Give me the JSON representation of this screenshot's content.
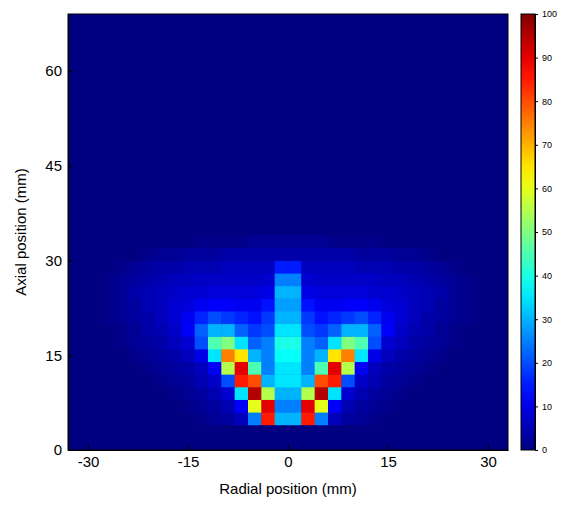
{
  "chart_data": {
    "type": "heatmap",
    "x_label": "Radial position (mm)",
    "y_label": "Axial position (mm)",
    "x": [
      -29,
      -27,
      -25,
      -23,
      -21,
      -19,
      -17,
      -15,
      -13,
      -11,
      -9,
      -7,
      -5,
      -3,
      -1,
      1,
      3,
      5,
      7,
      9,
      11,
      13,
      15,
      17,
      19,
      21,
      23,
      25,
      27,
      29
    ],
    "y": [
      5,
      7,
      9,
      11,
      13,
      15,
      17,
      19,
      21,
      23,
      25,
      27,
      29,
      31,
      33
    ],
    "z": [
      [
        0,
        0,
        0,
        0,
        0,
        0,
        0,
        0,
        1,
        2,
        3,
        6,
        25,
        85,
        30,
        30,
        85,
        25,
        6,
        3,
        2,
        1,
        0,
        0,
        0,
        0,
        0,
        0,
        0,
        0
      ],
      [
        0,
        0,
        0,
        0,
        0,
        0,
        0,
        1,
        2,
        3,
        5,
        12,
        60,
        90,
        25,
        25,
        90,
        60,
        12,
        5,
        3,
        2,
        1,
        0,
        0,
        0,
        0,
        0,
        0,
        0
      ],
      [
        0,
        0,
        0,
        0,
        0,
        0,
        1,
        2,
        3,
        5,
        8,
        35,
        95,
        55,
        30,
        30,
        55,
        95,
        35,
        8,
        5,
        3,
        2,
        1,
        0,
        0,
        0,
        0,
        0,
        0
      ],
      [
        0,
        0,
        0,
        0,
        0,
        1,
        2,
        3,
        5,
        7,
        20,
        85,
        80,
        30,
        35,
        35,
        30,
        80,
        85,
        20,
        7,
        5,
        3,
        2,
        1,
        0,
        0,
        0,
        0,
        0
      ],
      [
        0,
        0,
        0,
        0,
        1,
        2,
        3,
        4,
        6,
        12,
        55,
        90,
        45,
        25,
        35,
        35,
        25,
        45,
        90,
        55,
        12,
        6,
        4,
        3,
        2,
        1,
        0,
        0,
        0,
        0
      ],
      [
        0,
        0,
        0,
        1,
        2,
        3,
        4,
        6,
        10,
        35,
        75,
        65,
        30,
        25,
        38,
        38,
        25,
        30,
        65,
        75,
        35,
        10,
        6,
        4,
        3,
        2,
        1,
        0,
        0,
        0
      ],
      [
        0,
        0,
        1,
        2,
        3,
        4,
        6,
        8,
        20,
        45,
        50,
        35,
        22,
        25,
        40,
        40,
        25,
        22,
        35,
        50,
        45,
        20,
        8,
        6,
        4,
        3,
        2,
        1,
        0,
        0
      ],
      [
        0,
        0,
        1,
        2,
        4,
        5,
        7,
        12,
        22,
        30,
        30,
        22,
        18,
        20,
        35,
        35,
        20,
        18,
        22,
        30,
        30,
        22,
        12,
        7,
        5,
        4,
        2,
        1,
        0,
        0
      ],
      [
        0,
        1,
        2,
        3,
        4,
        6,
        8,
        11,
        16,
        20,
        18,
        16,
        14,
        18,
        30,
        30,
        18,
        14,
        16,
        18,
        20,
        16,
        11,
        8,
        6,
        4,
        3,
        2,
        1,
        0
      ],
      [
        0,
        1,
        2,
        3,
        5,
        6,
        8,
        9,
        11,
        12,
        12,
        11,
        11,
        14,
        28,
        28,
        14,
        11,
        11,
        12,
        12,
        11,
        9,
        8,
        6,
        5,
        3,
        2,
        1,
        0
      ],
      [
        0,
        1,
        2,
        4,
        5,
        6,
        7,
        8,
        8,
        9,
        9,
        9,
        9,
        10,
        30,
        30,
        10,
        9,
        9,
        9,
        9,
        8,
        8,
        7,
        6,
        5,
        4,
        2,
        1,
        0
      ],
      [
        0,
        1,
        2,
        3,
        4,
        5,
        6,
        6,
        7,
        7,
        7,
        7,
        7,
        8,
        25,
        25,
        8,
        7,
        7,
        7,
        7,
        7,
        6,
        6,
        5,
        4,
        3,
        2,
        1,
        0
      ],
      [
        0,
        0,
        1,
        2,
        3,
        4,
        4,
        5,
        5,
        5,
        6,
        6,
        6,
        6,
        15,
        15,
        6,
        6,
        6,
        6,
        5,
        5,
        5,
        4,
        4,
        3,
        2,
        1,
        0,
        0
      ],
      [
        0,
        0,
        0,
        0,
        1,
        2,
        2,
        3,
        3,
        3,
        4,
        4,
        4,
        4,
        4,
        4,
        4,
        4,
        4,
        4,
        3,
        3,
        3,
        2,
        2,
        1,
        0,
        0,
        0,
        0
      ],
      [
        0,
        0,
        0,
        0,
        0,
        0,
        0,
        0,
        1,
        1,
        1,
        1,
        2,
        2,
        2,
        2,
        2,
        2,
        1,
        1,
        1,
        1,
        0,
        0,
        0,
        0,
        0,
        0,
        0,
        0
      ]
    ],
    "xlim": [
      -33,
      33
    ],
    "ylim": [
      0,
      69
    ],
    "xticks": [
      -30,
      -15,
      0,
      15,
      30
    ],
    "yticks": [
      0,
      15,
      30,
      45,
      60
    ],
    "colorbar_lim": [
      0,
      100
    ],
    "colorbar_ticks": [
      0,
      10,
      20,
      30,
      40,
      50,
      60,
      70,
      80,
      90,
      100
    ]
  }
}
